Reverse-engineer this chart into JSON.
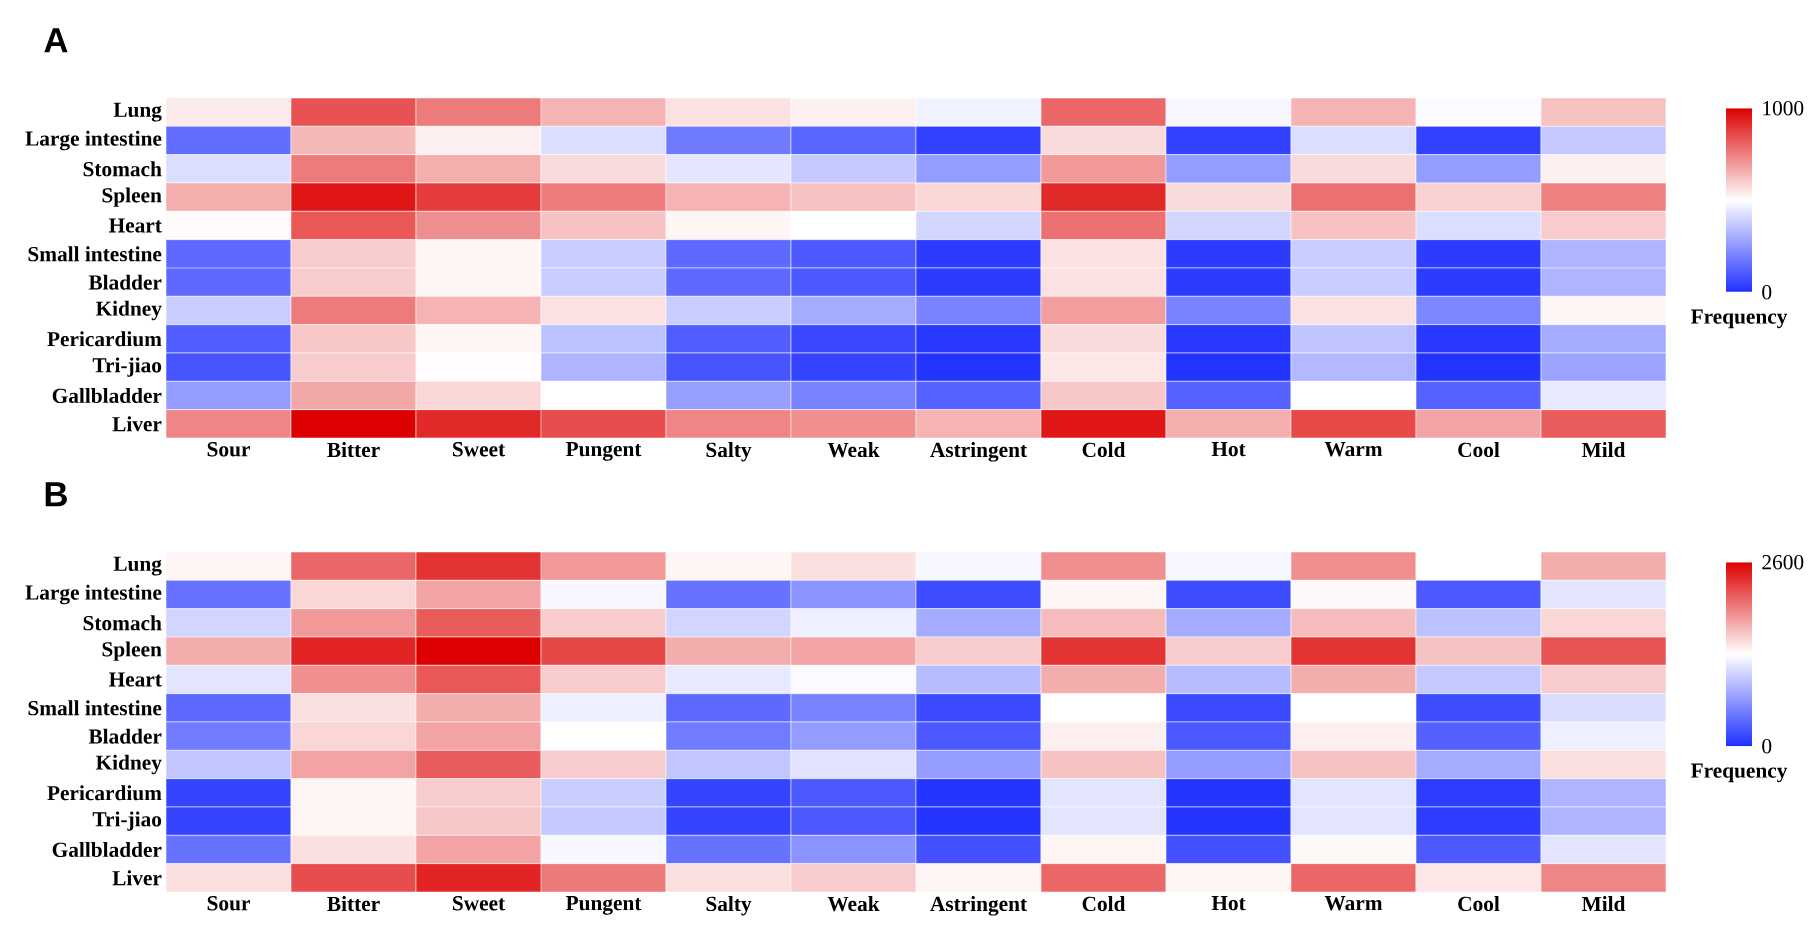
{
  "chart_data": [
    {
      "type": "heatmap",
      "title": "A",
      "clabel": "Frequency",
      "categories": [
        "Sour",
        "Bitter",
        "Sweet",
        "Pungent",
        "Salty",
        "Weak",
        "Astringent",
        "Cold",
        "Hot",
        "Warm",
        "Cool",
        "Mild"
      ],
      "y_categories": [
        "Lung",
        "Large intestine",
        "Stomach",
        "Spleen",
        "Heart",
        "Small intestine",
        "Bladder",
        "Kidney",
        "Pericardium",
        "Tri-jiao",
        "Gallbladder",
        "Liver"
      ],
      "cells": [
        [
          540,
          840,
          760,
          650,
          560,
          530,
          470,
          800,
          480,
          650,
          490,
          620
        ],
        [
          150,
          640,
          530,
          420,
          180,
          130,
          40,
          570,
          40,
          420,
          40,
          370
        ],
        [
          420,
          760,
          660,
          570,
          440,
          370,
          260,
          700,
          260,
          570,
          260,
          530
        ],
        [
          660,
          960,
          880,
          760,
          650,
          620,
          580,
          920,
          570,
          780,
          590,
          750
        ],
        [
          510,
          830,
          720,
          620,
          520,
          500,
          400,
          780,
          400,
          620,
          420,
          600
        ],
        [
          140,
          600,
          520,
          380,
          140,
          100,
          30,
          560,
          30,
          380,
          30,
          320
        ],
        [
          140,
          600,
          520,
          380,
          140,
          100,
          30,
          560,
          30,
          380,
          30,
          320
        ],
        [
          380,
          760,
          650,
          560,
          380,
          300,
          200,
          690,
          200,
          560,
          210,
          520
        ],
        [
          110,
          610,
          520,
          350,
          110,
          60,
          20,
          570,
          20,
          360,
          20,
          300
        ],
        [
          90,
          600,
          505,
          320,
          90,
          50,
          10,
          550,
          10,
          330,
          10,
          280
        ],
        [
          260,
          670,
          580,
          500,
          270,
          200,
          120,
          610,
          120,
          500,
          120,
          450
        ],
        [
          740,
          1000,
          920,
          850,
          740,
          720,
          650,
          960,
          660,
          860,
          680,
          820
        ]
      ],
      "clim": [
        0,
        1000
      ],
      "cticks": [
        0,
        1000
      ]
    },
    {
      "type": "heatmap",
      "title": "B",
      "clabel": "Frequency",
      "categories": [
        "Sour",
        "Bitter",
        "Sweet",
        "Pungent",
        "Salty",
        "Weak",
        "Astringent",
        "Cold",
        "Hot",
        "Warm",
        "Cool",
        "Mild"
      ],
      "y_categories": [
        "Lung",
        "Large intestine",
        "Stomach",
        "Spleen",
        "Heart",
        "Small intestine",
        "Bladder",
        "Kidney",
        "Pericardium",
        "Tri-jiao",
        "Gallbladder",
        "Liver"
      ],
      "cells": [
        [
          1350,
          2080,
          2340,
          1820,
          1350,
          1460,
          1250,
          1870,
          1250,
          1870,
          1300,
          1720
        ],
        [
          420,
          1510,
          1770,
          1250,
          420,
          620,
          180,
          1350,
          180,
          1330,
          260,
          1140
        ],
        [
          1040,
          1820,
          2130,
          1560,
          1040,
          1200,
          780,
          1640,
          780,
          1640,
          910,
          1510
        ],
        [
          1720,
          2420,
          2600,
          2240,
          1720,
          1770,
          1560,
          2340,
          1560,
          2340,
          1610,
          2180
        ],
        [
          1140,
          1870,
          2160,
          1560,
          1170,
          1270,
          880,
          1720,
          880,
          1720,
          960,
          1560
        ],
        [
          360,
          1460,
          1720,
          1200,
          360,
          520,
          160,
          1300,
          160,
          1300,
          180,
          1090
        ],
        [
          470,
          1510,
          1770,
          1300,
          470,
          680,
          260,
          1380,
          260,
          1380,
          310,
          1200
        ],
        [
          940,
          1770,
          2130,
          1560,
          940,
          1120,
          680,
          1610,
          680,
          1610,
          780,
          1460
        ],
        [
          130,
          1350,
          1560,
          990,
          130,
          260,
          30,
          1140,
          30,
          1140,
          80,
          830
        ],
        [
          130,
          1350,
          1590,
          960,
          130,
          260,
          30,
          1140,
          30,
          1140,
          80,
          830
        ],
        [
          420,
          1460,
          1770,
          1250,
          420,
          620,
          210,
          1350,
          210,
          1330,
          260,
          1140
        ],
        [
          1460,
          2210,
          2420,
          1980,
          1460,
          1560,
          1350,
          2080,
          1350,
          2080,
          1430,
          1920
        ]
      ],
      "clim": [
        0,
        2600
      ],
      "cticks": [
        0,
        2600
      ]
    }
  ]
}
